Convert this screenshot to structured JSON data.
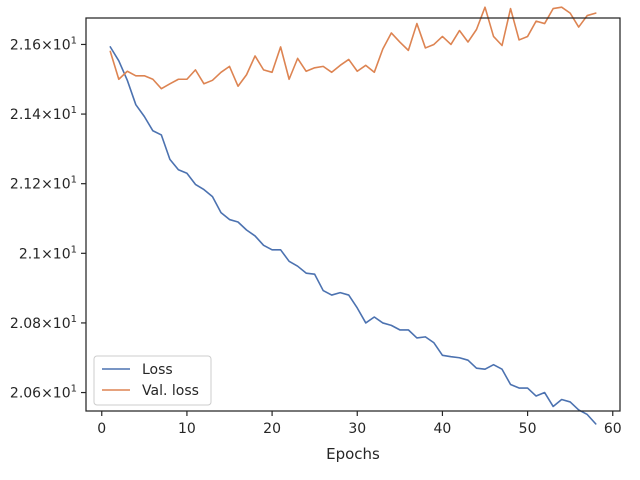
{
  "chart_data": {
    "type": "line",
    "title": "",
    "xlabel": "Epochs",
    "ylabel": "",
    "xlim": [
      -1.85,
      60.85
    ],
    "ylim": [
      20.547,
      21.676
    ],
    "xticks": [
      0,
      10,
      20,
      30,
      40,
      50,
      60
    ],
    "xtick_labels": [
      "0",
      "10",
      "20",
      "30",
      "40",
      "50",
      "60"
    ],
    "yticks": [
      20.6,
      20.8,
      21.0,
      21.2,
      21.4,
      21.6
    ],
    "ytick_mantissas": [
      "2.06",
      "2.08",
      "2.1",
      "2.12",
      "2.14",
      "2.16"
    ],
    "ytick_suffix": "×10",
    "ytick_exponent": "1",
    "grid": false,
    "legend": "lower-left",
    "colors": {
      "loss": "#4c72b0",
      "val_loss": "#dd8452",
      "axis": "#262626"
    },
    "x": [
      1,
      2,
      3,
      4,
      5,
      6,
      7,
      8,
      9,
      10,
      11,
      12,
      13,
      14,
      15,
      16,
      17,
      18,
      19,
      20,
      21,
      22,
      23,
      24,
      25,
      26,
      27,
      28,
      29,
      30,
      31,
      32,
      33,
      34,
      35,
      36,
      37,
      38,
      39,
      40,
      41,
      42,
      43,
      44,
      45,
      46,
      47,
      48,
      49,
      50,
      51,
      52,
      53,
      54,
      55,
      56,
      57,
      58
    ],
    "series": [
      {
        "name": "Loss",
        "color": "#4c72b0",
        "values": [
          21.593,
          21.553,
          21.497,
          21.427,
          21.393,
          21.352,
          21.34,
          21.27,
          21.24,
          21.23,
          21.198,
          21.183,
          21.163,
          21.117,
          21.097,
          21.09,
          21.067,
          21.05,
          21.023,
          21.01,
          21.01,
          20.977,
          20.963,
          20.943,
          20.94,
          20.893,
          20.88,
          20.887,
          20.88,
          20.843,
          20.8,
          20.817,
          20.8,
          20.793,
          20.78,
          20.78,
          20.757,
          20.76,
          20.743,
          20.707,
          20.703,
          20.7,
          20.693,
          20.67,
          20.667,
          20.68,
          20.667,
          20.623,
          20.613,
          20.613,
          20.59,
          20.6,
          20.56,
          20.58,
          20.573,
          20.55,
          20.537,
          20.51
        ]
      },
      {
        "name": "Val. loss",
        "color": "#dd8452",
        "values": [
          21.58,
          21.5,
          21.523,
          21.51,
          21.51,
          21.5,
          21.473,
          21.487,
          21.5,
          21.5,
          21.527,
          21.487,
          21.497,
          21.52,
          21.537,
          21.48,
          21.513,
          21.567,
          21.527,
          21.52,
          21.593,
          21.5,
          21.56,
          21.523,
          21.533,
          21.537,
          21.52,
          21.54,
          21.557,
          21.523,
          21.54,
          21.52,
          21.587,
          21.633,
          21.607,
          21.583,
          21.66,
          21.59,
          21.6,
          21.623,
          21.6,
          21.64,
          21.607,
          21.643,
          21.707,
          21.623,
          21.597,
          21.703,
          21.613,
          21.623,
          21.667,
          21.66,
          21.703,
          21.707,
          21.69,
          21.65,
          21.683,
          21.69
        ]
      }
    ]
  }
}
